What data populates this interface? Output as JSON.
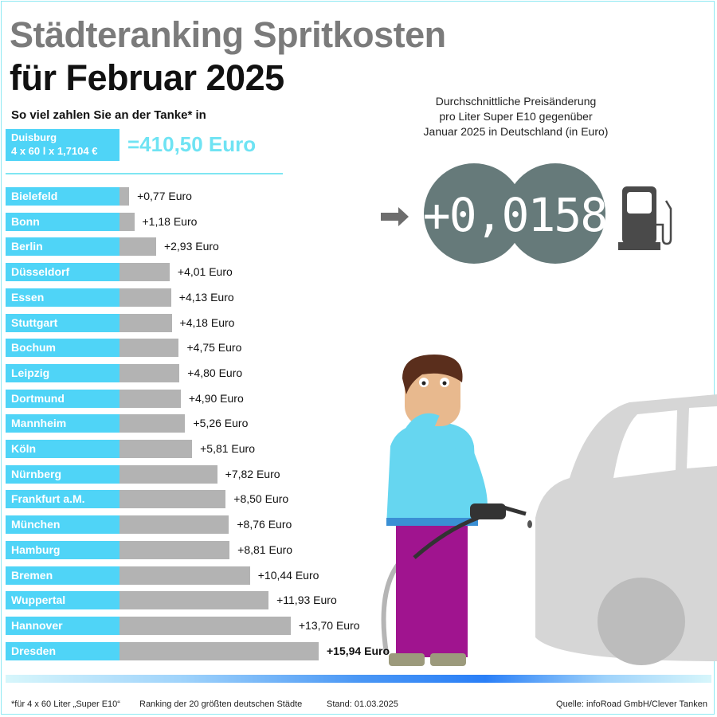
{
  "title_line1": "Städteranking Spritkosten",
  "title_line2": "für Februar 2025",
  "subtitle": "So viel zahlen Sie an der Tanke* in",
  "reference": {
    "city": "Duisburg",
    "formula": "4 x 60 l x 1,7104 €",
    "total": "=410,50 Euro"
  },
  "price_change": {
    "description": [
      "Durchschnittliche Preisänderung",
      "pro Liter Super E10 gegenüber",
      "Januar 2025 in Deutschland (in Euro)"
    ],
    "value": "+0,0158",
    "display_color": "#667a7a"
  },
  "icons": [
    "arrow-right-icon",
    "fuel-pump-icon"
  ],
  "chart_data": {
    "type": "bar",
    "orientation": "horizontal",
    "categories": [
      "Bielefeld",
      "Bonn",
      "Berlin",
      "Düsseldorf",
      "Essen",
      "Stuttgart",
      "Bochum",
      "Leipzig",
      "Dortmund",
      "Mannheim",
      "Köln",
      "Nürnberg",
      "Frankfurt a.M.",
      "München",
      "Hamburg",
      "Bremen",
      "Wuppertal",
      "Hannover",
      "Dresden"
    ],
    "values": [
      0.77,
      1.18,
      2.93,
      4.01,
      4.13,
      4.18,
      4.75,
      4.8,
      4.9,
      5.26,
      5.81,
      7.82,
      8.5,
      8.76,
      8.81,
      10.44,
      11.93,
      13.7,
      15.94
    ],
    "labels": [
      "+0,77 Euro",
      "+1,18 Euro",
      "+2,93 Euro",
      "+4,01 Euro",
      "+4,13 Euro",
      "+4,18 Euro",
      "+4,75 Euro",
      "+4,80 Euro",
      "+4,90 Euro",
      "+5,26 Euro",
      "+5,81 Euro",
      "+7,82 Euro",
      "+8,50 Euro",
      "+8,76 Euro",
      "+8,81 Euro",
      "+10,44 Euro",
      "+11,93 Euro",
      "+13,70 Euro",
      "+15,94 Euro"
    ],
    "label_color": "#4fd4f7",
    "bar_color": "#b3b3b3"
  },
  "footer": {
    "note": "*für 4 x 60 Liter „Super E10“",
    "ranking": "Ranking der 20 größten deutschen Städte",
    "date": "Stand: 01.03.2025",
    "source": "Quelle: infoRoad GmbH/Clever Tanken"
  }
}
